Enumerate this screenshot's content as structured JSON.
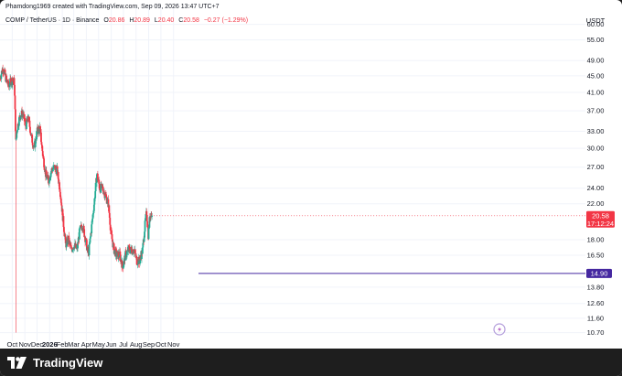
{
  "header": {
    "credit": "Phamdong1969 created with TradingView.com, Sep 09, 2026 13:47 UTC+7"
  },
  "legend": {
    "symbol": "COMP / TetherUS · 1D · Binance",
    "o_label": "O",
    "o_value": "20.86",
    "h_label": "H",
    "h_value": "20.89",
    "l_label": "L",
    "l_value": "20.40",
    "c_label": "C",
    "c_value": "20.58",
    "change": "−0.27 (−1.29%)"
  },
  "footer": {
    "brand": "TradingView"
  },
  "colors": {
    "up": "#22ab94",
    "down": "#f23645",
    "support": "#4527a0",
    "price_tag": "#f23645",
    "support_tag": "#4527a0",
    "grid": "#f0f3fa"
  },
  "chart_data": {
    "type": "candlestick",
    "y_axis_title": "USDT",
    "y_scale": "log",
    "ylim": [
      10.2,
      66
    ],
    "y_ticks": [
      60.0,
      55.0,
      49.0,
      45.0,
      41.0,
      37.0,
      33.0,
      30.0,
      27.0,
      24.0,
      22.0,
      18.0,
      16.5,
      13.8,
      12.6,
      11.6,
      10.7
    ],
    "y_tick_labels": [
      "60.00",
      "55.00",
      "49.00",
      "45.00",
      "41.00",
      "37.00",
      "33.00",
      "30.00",
      "27.00",
      "24.00",
      "22.00",
      "18.00",
      "16.50",
      "13.80",
      "12.60",
      "11.60",
      "10.70"
    ],
    "x_ticks": [
      "Oct",
      "Nov",
      "Dec",
      "2026",
      "Feb",
      "Mar",
      "Apr",
      "May",
      "Jun",
      "Jul",
      "Aug",
      "Sep",
      "Oct",
      "Nov"
    ],
    "price_path": [
      [
        "Sep 1",
        44.5
      ],
      [
        "Sep 8",
        47.0
      ],
      [
        "Sep 15",
        44.5
      ],
      [
        "Sep 22",
        42.5
      ],
      [
        "Sep 29",
        44.0
      ],
      [
        "Oct 6",
        43.5
      ],
      [
        "Oct 10",
        31.0
      ],
      [
        "Oct 13",
        33.5
      ],
      [
        "Oct 20",
        36.0
      ],
      [
        "Oct 27",
        36.5
      ],
      [
        "Nov 3",
        34.0
      ],
      [
        "Nov 10",
        35.5
      ],
      [
        "Nov 17",
        32.0
      ],
      [
        "Nov 24",
        30.0
      ],
      [
        "Dec 1",
        33.0
      ],
      [
        "Dec 8",
        33.5
      ],
      [
        "Dec 15",
        29.0
      ],
      [
        "Dec 22",
        26.0
      ],
      [
        "Dec 29",
        25.0
      ],
      [
        "Jan 5",
        26.5
      ],
      [
        "Jan 12",
        27.0
      ],
      [
        "Jan 19",
        26.5
      ],
      [
        "Jan 26",
        24.0
      ],
      [
        "Feb 2",
        20.5
      ],
      [
        "Feb 9",
        17.5
      ],
      [
        "Feb 16",
        18.0
      ],
      [
        "Feb 23",
        17.0
      ],
      [
        "Mar 2",
        17.5
      ],
      [
        "Mar 9",
        17.0
      ],
      [
        "Mar 16",
        19.0
      ],
      [
        "Mar 23",
        19.5
      ],
      [
        "Mar 30",
        18.0
      ],
      [
        "Apr 6",
        16.5
      ],
      [
        "Apr 13",
        19.0
      ],
      [
        "Apr 20",
        22.0
      ],
      [
        "Apr 27",
        26.0
      ],
      [
        "May 4",
        24.0
      ],
      [
        "May 11",
        24.0
      ],
      [
        "May 18",
        23.0
      ],
      [
        "May 25",
        22.0
      ],
      [
        "Jun 1",
        18.5
      ],
      [
        "Jun 8",
        17.0
      ],
      [
        "Jun 15",
        16.5
      ],
      [
        "Jun 22",
        16.5
      ],
      [
        "Jun 29",
        15.5
      ],
      [
        "Jul 6",
        16.5
      ],
      [
        "Jul 13",
        17.0
      ],
      [
        "Jul 20",
        17.0
      ],
      [
        "Jul 27",
        17.0
      ],
      [
        "Aug 3",
        16.0
      ],
      [
        "Aug 10",
        16.0
      ],
      [
        "Aug 17",
        17.0
      ],
      [
        "Aug 24",
        20.0
      ],
      [
        "Aug 27",
        21.0
      ],
      [
        "Aug 31",
        18.5
      ],
      [
        "Sep 3",
        20.0
      ],
      [
        "Sep 6",
        21.0
      ],
      [
        "Sep 9",
        20.58
      ]
    ],
    "support_level": 14.9,
    "support_label": "14.90",
    "current_price": 20.58,
    "current_price_label": "20.58",
    "countdown_label": "17:12:24",
    "annotations": [
      "Oct 10 long wick to 10.7",
      "Apr 24 spike to 30.0"
    ]
  }
}
